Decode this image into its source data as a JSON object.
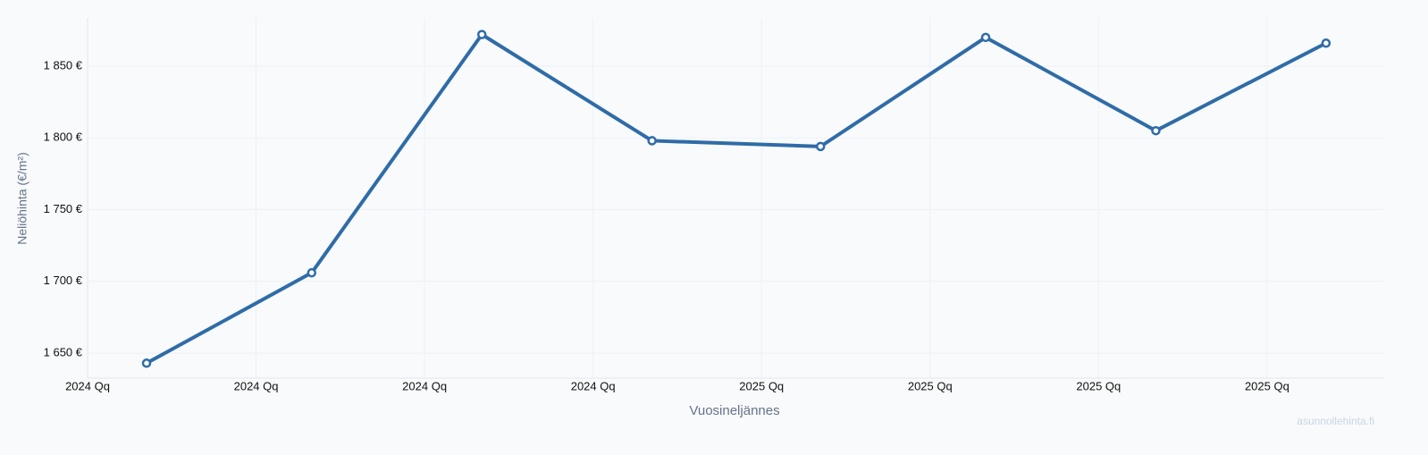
{
  "chart_data": {
    "type": "line",
    "x_label": "Vuosineljännes",
    "y_label": "Neliöhinta (€/m²)",
    "watermark": "asunnollehinta.fi",
    "x": [
      0.35,
      1.33,
      2.34,
      3.35,
      4.35,
      5.33,
      6.34,
      7.35
    ],
    "series": [
      {
        "name": "Neliöhinta",
        "color": "#2f6ca7",
        "values": [
          1643,
          1706,
          1872,
          1798,
          1794,
          1870,
          1805,
          1866
        ]
      }
    ],
    "xlim": [
      0,
      7.69
    ],
    "xticks": [
      {
        "value": 0,
        "label": "2024 Qq"
      },
      {
        "value": 1,
        "label": "2024 Qq"
      },
      {
        "value": 2,
        "label": "2024 Qq"
      },
      {
        "value": 3,
        "label": "2024 Qq"
      },
      {
        "value": 4,
        "label": "2025 Qq"
      },
      {
        "value": 5,
        "label": "2025 Qq"
      },
      {
        "value": 6,
        "label": "2025 Qq"
      },
      {
        "value": 7,
        "label": "2025 Qq"
      }
    ],
    "ylim": [
      1632.6,
      1883.6
    ],
    "yticks": [
      {
        "value": 1650,
        "label": "1 650 €"
      },
      {
        "value": 1700,
        "label": "1 700 €"
      },
      {
        "value": 1750,
        "label": "1 750 €"
      },
      {
        "value": 1800,
        "label": "1 800 €"
      },
      {
        "value": 1850,
        "label": "1 850 €"
      }
    ],
    "grid": true
  }
}
